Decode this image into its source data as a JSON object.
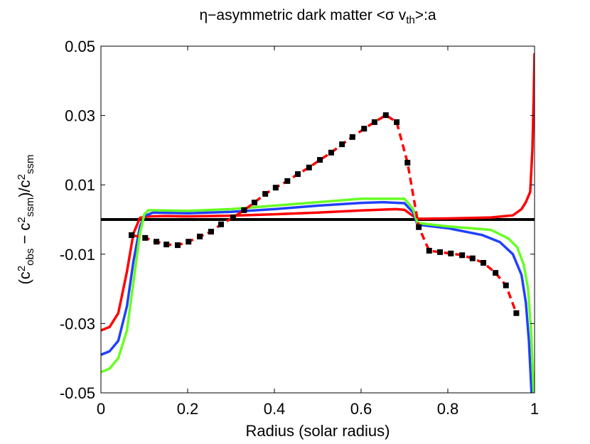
{
  "chart_data": {
    "type": "line",
    "title": [
      {
        "text": "η−asymmetric dark matter <σ v"
      },
      {
        "text": "th",
        "shift": "sub"
      },
      {
        "text": ">:a"
      }
    ],
    "xlabel": "Radius (solar radius)",
    "ylabel": [
      {
        "text": "(c"
      },
      {
        "text": "2",
        "shift": "sup"
      },
      {
        "text": "obs",
        "shift": "sub"
      },
      {
        "text": " − c"
      },
      {
        "text": "2",
        "shift": "sup"
      },
      {
        "text": "ssm",
        "shift": "sub"
      },
      {
        "text": ")/c"
      },
      {
        "text": "2",
        "shift": "sup"
      },
      {
        "text": "ssm",
        "shift": "sub"
      }
    ],
    "xlim": [
      0,
      1
    ],
    "xticks": [
      0,
      0.2,
      0.4,
      0.6,
      0.8,
      1
    ],
    "ylim": [
      -0.05,
      0.05
    ],
    "yticks": [
      0.05,
      0.03,
      0.01,
      -0.01,
      -0.03,
      -0.05
    ],
    "series": [
      {
        "color": "#000000",
        "width": 4,
        "x": [
          0,
          1
        ],
        "values": [
          0,
          0
        ]
      },
      {
        "color": "#ff0000",
        "width": 3.5,
        "x": [
          0,
          0.02,
          0.04,
          0.06,
          0.075,
          0.09,
          0.11,
          0.15,
          0.2,
          0.3,
          0.4,
          0.5,
          0.6,
          0.68,
          0.7,
          0.72,
          0.73,
          0.8,
          0.9,
          0.95,
          0.97,
          0.98,
          0.99,
          0.995,
          0.998,
          1
        ],
        "values": [
          -0.032,
          -0.031,
          -0.027,
          -0.015,
          -0.004,
          0.0005,
          0.0009,
          0.001,
          0.0009,
          0.0011,
          0.0015,
          0.002,
          0.0026,
          0.003,
          0.0028,
          0.001,
          0.0002,
          0.0003,
          0.0006,
          0.0012,
          0.003,
          0.005,
          0.008,
          0.02,
          0.035,
          0.048
        ]
      },
      {
        "color": "#2040ff",
        "width": 3.5,
        "x": [
          0,
          0.02,
          0.04,
          0.06,
          0.075,
          0.09,
          0.1,
          0.12,
          0.2,
          0.3,
          0.4,
          0.5,
          0.6,
          0.65,
          0.7,
          0.72,
          0.73,
          0.8,
          0.88,
          0.92,
          0.95,
          0.97,
          0.98,
          0.987,
          0.993
        ],
        "values": [
          -0.039,
          -0.038,
          -0.035,
          -0.025,
          -0.012,
          -0.002,
          0.001,
          0.002,
          0.0018,
          0.0022,
          0.003,
          0.004,
          0.0048,
          0.005,
          0.0047,
          0.002,
          -0.0015,
          -0.0025,
          -0.0045,
          -0.0065,
          -0.01,
          -0.016,
          -0.024,
          -0.035,
          -0.05
        ]
      },
      {
        "color": "#66ff22",
        "width": 3.5,
        "x": [
          0,
          0.02,
          0.04,
          0.06,
          0.075,
          0.09,
          0.1,
          0.11,
          0.2,
          0.3,
          0.4,
          0.5,
          0.6,
          0.7,
          0.72,
          0.73,
          0.8,
          0.9,
          0.94,
          0.96,
          0.975,
          0.985,
          0.992,
          0.998
        ],
        "values": [
          -0.044,
          -0.043,
          -0.04,
          -0.032,
          -0.018,
          -0.004,
          0.0015,
          0.0027,
          0.0025,
          0.003,
          0.004,
          0.005,
          0.006,
          0.006,
          0.003,
          -0.001,
          -0.002,
          -0.003,
          -0.0055,
          -0.008,
          -0.013,
          -0.02,
          -0.032,
          -0.05
        ]
      },
      {
        "color": "#ff0000",
        "width": 3.5,
        "dash": true,
        "marker": "square",
        "marker_color": "#000000",
        "x": [
          0.0705,
          0.102,
          0.128,
          0.151,
          0.177,
          0.202,
          0.228,
          0.254,
          0.277,
          0.305,
          0.33,
          0.354,
          0.379,
          0.403,
          0.43,
          0.454,
          0.48,
          0.505,
          0.531,
          0.556,
          0.58,
          0.607,
          0.631,
          0.657,
          0.682,
          0.707,
          0.733,
          0.757,
          0.782,
          0.807,
          0.833,
          0.857,
          0.882,
          0.91,
          0.934,
          0.958
        ],
        "values": [
          -0.0045,
          -0.0053,
          -0.0064,
          -0.0072,
          -0.0074,
          -0.0064,
          -0.0049,
          -0.0035,
          -0.0014,
          0.0006,
          0.0027,
          0.0049,
          0.0074,
          0.0092,
          0.0111,
          0.0131,
          0.015,
          0.0172,
          0.0193,
          0.0217,
          0.0238,
          0.0262,
          0.0281,
          0.0301,
          0.0281,
          0.0164,
          -0.0022,
          -0.009,
          -0.0094,
          -0.0098,
          -0.0103,
          -0.0112,
          -0.0125,
          -0.0154,
          -0.019,
          -0.027
        ]
      }
    ]
  }
}
